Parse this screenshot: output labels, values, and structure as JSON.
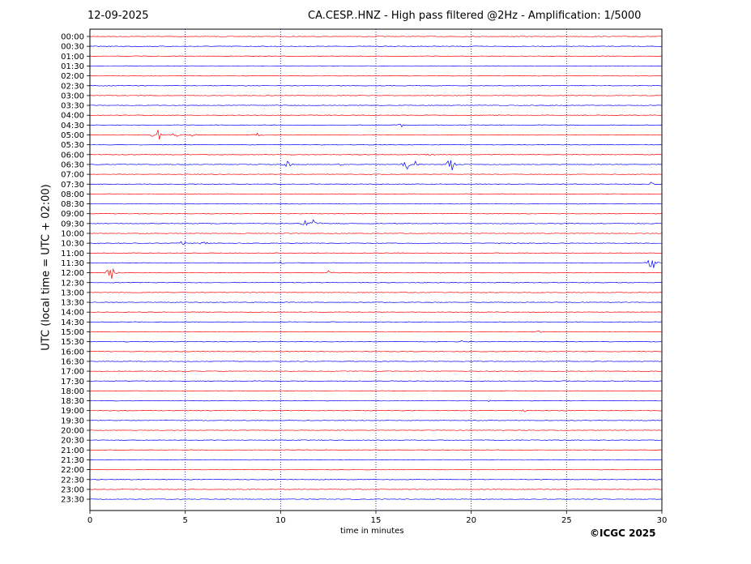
{
  "header": {
    "date": "12-09-2025",
    "title": "CA.CESP..HNZ - High pass filtered @2Hz - Amplification: 1/5000"
  },
  "footer": {
    "credit": "©ICGC 2025"
  },
  "chart_data": {
    "type": "line",
    "title": "CA.CESP..HNZ - High pass filtered @2Hz - Amplification: 1/5000",
    "xlabel": "time in minutes",
    "ylabel": "UTC (local time = UTC + 02:00)",
    "xlim": [
      0,
      30
    ],
    "x_ticks": [
      0,
      5,
      10,
      15,
      20,
      25,
      30
    ],
    "row_labels": [
      "00:00",
      "00:30",
      "01:00",
      "01:30",
      "02:00",
      "02:30",
      "03:00",
      "03:30",
      "04:00",
      "04:30",
      "05:00",
      "05:30",
      "06:00",
      "06:30",
      "07:00",
      "07:30",
      "08:00",
      "08:30",
      "09:00",
      "09:30",
      "10:00",
      "10:30",
      "11:00",
      "11:30",
      "12:00",
      "12:30",
      "13:00",
      "13:30",
      "14:00",
      "14:30",
      "15:00",
      "15:30",
      "16:00",
      "16:30",
      "17:00",
      "17:30",
      "18:00",
      "18:30",
      "19:00",
      "19:30",
      "20:00",
      "20:30",
      "21:00",
      "21:30",
      "22:00",
      "22:30",
      "23:00",
      "23:30"
    ],
    "trace_colors": [
      "#ff0000",
      "#0000ff"
    ],
    "vertical_grid": "dotted at every 5 minutes",
    "events": [
      {
        "row": "04:30",
        "minute": 16.3,
        "amplitude": 0.3
      },
      {
        "row": "05:00",
        "minute": 3.2,
        "amplitude": 0.3
      },
      {
        "row": "05:00",
        "minute": 3.6,
        "amplitude": 0.7
      },
      {
        "row": "05:00",
        "minute": 4.4,
        "amplitude": 0.8
      },
      {
        "row": "05:00",
        "minute": 5.4,
        "amplitude": 0.3
      },
      {
        "row": "05:00",
        "minute": 8.8,
        "amplitude": 0.5
      },
      {
        "row": "06:00",
        "minute": 17.9,
        "amplitude": 0.3
      },
      {
        "row": "06:30",
        "minute": 10.4,
        "amplitude": 0.8
      },
      {
        "row": "06:30",
        "minute": 13.1,
        "amplitude": 0.2
      },
      {
        "row": "06:30",
        "minute": 16.6,
        "amplitude": 1.1
      },
      {
        "row": "06:30",
        "minute": 17.1,
        "amplitude": 0.4
      },
      {
        "row": "06:30",
        "minute": 18.9,
        "amplitude": 1.6
      },
      {
        "row": "07:30",
        "minute": 29.4,
        "amplitude": 0.3
      },
      {
        "row": "09:30",
        "minute": 11.3,
        "amplitude": 0.4
      },
      {
        "row": "09:30",
        "minute": 11.8,
        "amplitude": 1.2
      },
      {
        "row": "10:30",
        "minute": 4.9,
        "amplitude": 0.4
      },
      {
        "row": "10:30",
        "minute": 5.9,
        "amplitude": 0.7
      },
      {
        "row": "11:30",
        "minute": 10.0,
        "amplitude": 0.3
      },
      {
        "row": "11:30",
        "minute": 29.5,
        "amplitude": 1.7
      },
      {
        "row": "12:00",
        "minute": 1.1,
        "amplitude": 1.6
      },
      {
        "row": "12:00",
        "minute": 12.5,
        "amplitude": 0.3
      },
      {
        "row": "15:00",
        "minute": 23.5,
        "amplitude": 0.2
      },
      {
        "row": "15:30",
        "minute": 19.6,
        "amplitude": 0.2
      },
      {
        "row": "18:30",
        "minute": 21.0,
        "amplitude": 0.2
      },
      {
        "row": "19:00",
        "minute": 22.8,
        "amplitude": 0.2
      }
    ]
  }
}
